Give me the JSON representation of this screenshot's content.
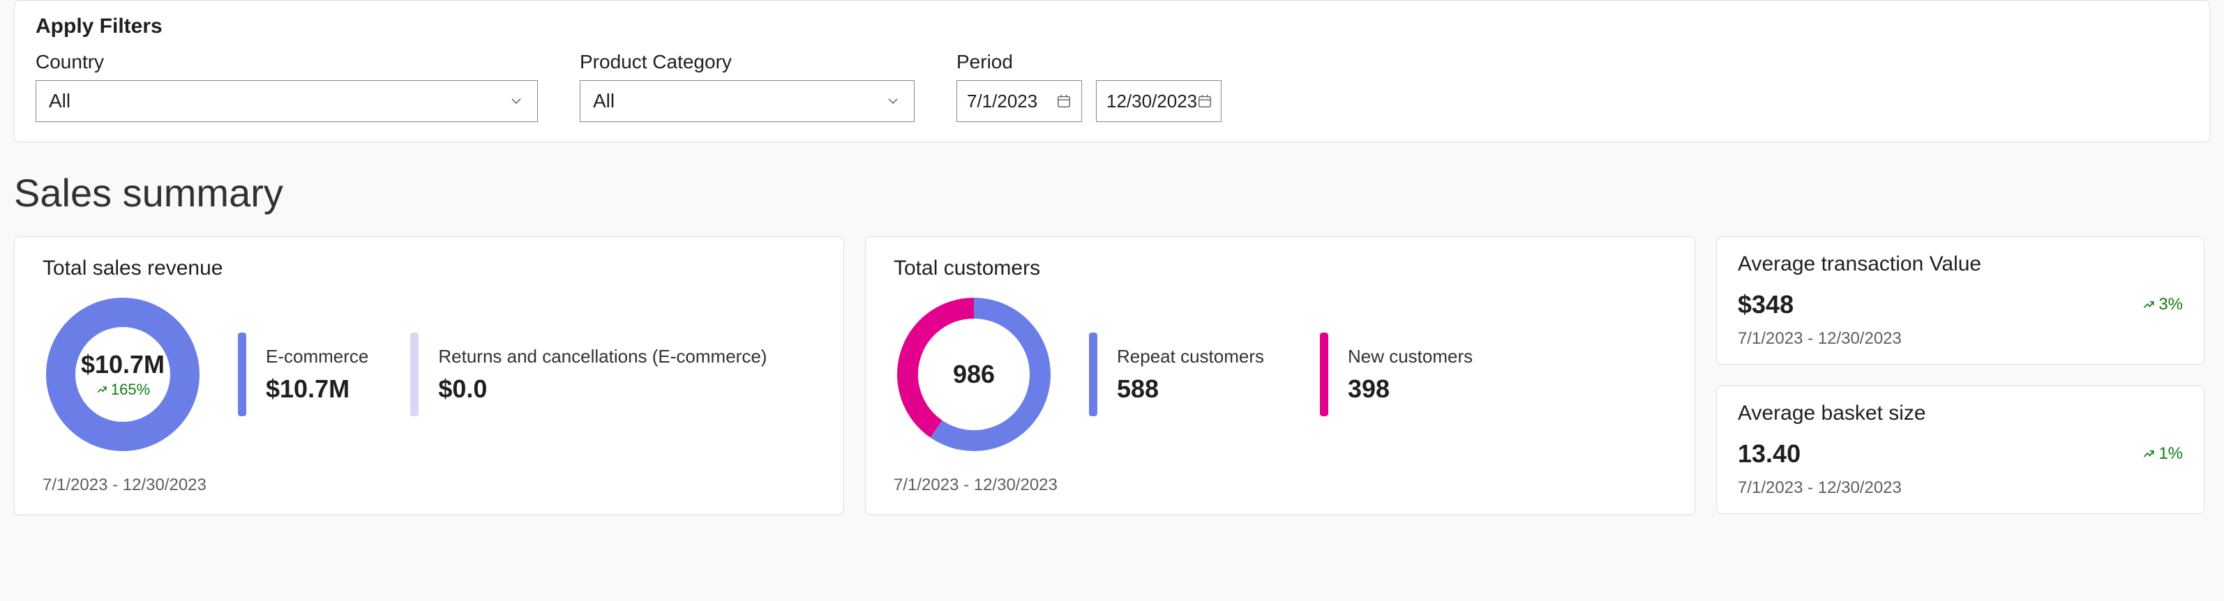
{
  "filters": {
    "title": "Apply Filters",
    "country": {
      "label": "Country",
      "value": "All"
    },
    "category": {
      "label": "Product Category",
      "value": "All"
    },
    "period": {
      "label": "Period",
      "start": "7/1/2023",
      "end": "12/30/2023"
    }
  },
  "section_heading": "Sales summary",
  "colors": {
    "primary_blue": "#6b7ee8",
    "accent_pink": "#e3008c",
    "light_lavender": "#d9d6f5",
    "text_muted": "#605e5c",
    "delta_green": "#107c10",
    "card_border": "#e1dfdd",
    "page_bg": "#faf9f8"
  },
  "revenue_card": {
    "title": "Total sales revenue",
    "donut": {
      "value": "$10.7M",
      "delta": "165%",
      "segments": [
        {
          "label": "E-commerce",
          "fraction": 1.0,
          "color": "#6b7ee8"
        }
      ],
      "thickness": 42
    },
    "breakdown": [
      {
        "label": "E-commerce",
        "value": "$10.7M",
        "bar_color": "#6b7ee8"
      },
      {
        "label": "Returns and cancellations (E-commerce)",
        "value": "$0.0",
        "bar_color": "#d9d6f5"
      }
    ],
    "date_range": "7/1/2023 - 12/30/2023"
  },
  "customers_card": {
    "title": "Total customers",
    "donut": {
      "value": "986",
      "segments": [
        {
          "label": "Repeat",
          "fraction": 0.596,
          "color": "#6b7ee8"
        },
        {
          "label": "New",
          "fraction": 0.404,
          "color": "#e3008c"
        }
      ],
      "thickness": 30
    },
    "breakdown": [
      {
        "label": "Repeat customers",
        "value": "588",
        "bar_color": "#6b7ee8"
      },
      {
        "label": "New customers",
        "value": "398",
        "bar_color": "#e3008c"
      }
    ],
    "date_range": "7/1/2023 - 12/30/2023"
  },
  "small_cards": [
    {
      "title": "Average transaction Value",
      "value": "$348",
      "delta": "3%",
      "date_range": "7/1/2023 - 12/30/2023"
    },
    {
      "title": "Average basket size",
      "value": "13.40",
      "delta": "1%",
      "date_range": "7/1/2023 - 12/30/2023"
    }
  ]
}
